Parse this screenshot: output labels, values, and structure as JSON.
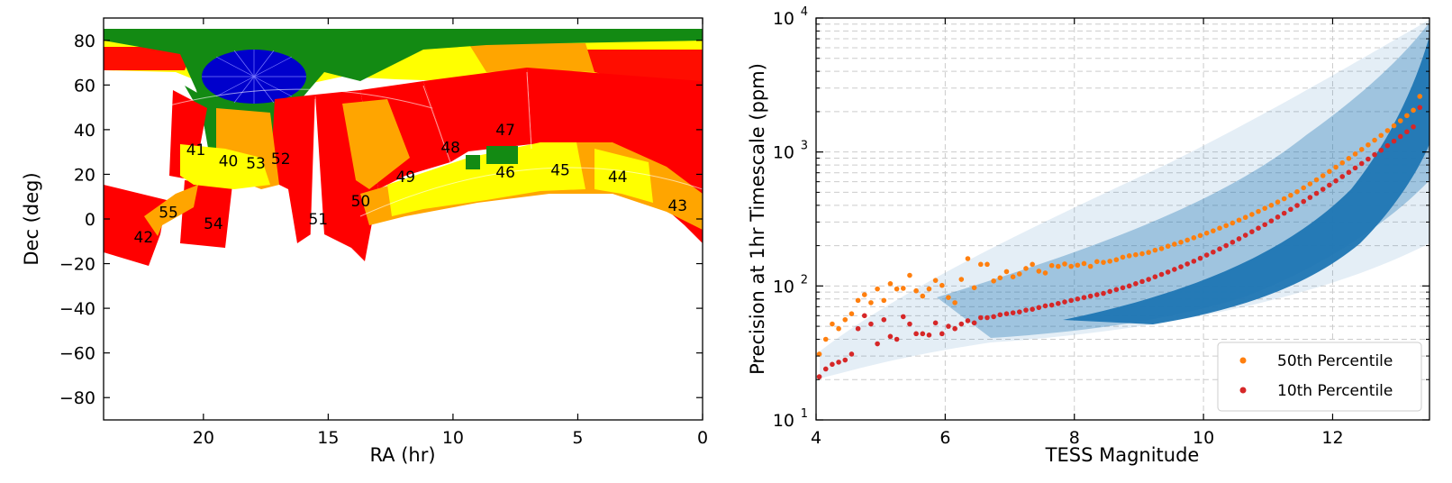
{
  "chart_data": [
    {
      "type": "scatter",
      "xlabel": "RA (hr)",
      "ylabel": "Dec (deg)",
      "xlim": [
        24,
        0
      ],
      "ylim": [
        -90,
        90
      ],
      "x_ticks": [
        "20",
        "15",
        "10",
        "5",
        "0"
      ],
      "x_tick_values": [
        20,
        15,
        10,
        5,
        0
      ],
      "y_ticks": [
        "80",
        "60",
        "40",
        "20",
        "0",
        "−20",
        "−40",
        "−60",
        "−80"
      ],
      "y_tick_values": [
        80,
        60,
        40,
        20,
        0,
        -20,
        -40,
        -60,
        -80
      ],
      "grid": false,
      "coverage_colors": {
        "one_sector": "#ff0000",
        "two_sectors": "#ffa500",
        "three_plus_sectors": "#ffff00",
        "many_sectors": "#008000",
        "continuous_viewing_zone": "#0000ff"
      },
      "sector_labels": [
        {
          "text": "42",
          "ra": 22.4,
          "dec": -8
        },
        {
          "text": "55",
          "ra": 21.4,
          "dec": 3
        },
        {
          "text": "54",
          "ra": 19.6,
          "dec": -2
        },
        {
          "text": "41",
          "ra": 20.3,
          "dec": 31
        },
        {
          "text": "40",
          "ra": 19.0,
          "dec": 26
        },
        {
          "text": "53",
          "ra": 17.9,
          "dec": 25
        },
        {
          "text": "52",
          "ra": 16.9,
          "dec": 27
        },
        {
          "text": "51",
          "ra": 15.4,
          "dec": 0
        },
        {
          "text": "50",
          "ra": 13.7,
          "dec": 8
        },
        {
          "text": "49",
          "ra": 11.9,
          "dec": 19
        },
        {
          "text": "48",
          "ra": 10.1,
          "dec": 32
        },
        {
          "text": "47",
          "ra": 7.9,
          "dec": 40
        },
        {
          "text": "46",
          "ra": 7.9,
          "dec": 21
        },
        {
          "text": "45",
          "ra": 5.7,
          "dec": 22
        },
        {
          "text": "44",
          "ra": 3.4,
          "dec": 19
        },
        {
          "text": "43",
          "ra": 1.0,
          "dec": 6
        }
      ]
    },
    {
      "type": "scatter",
      "xlabel": "TESS Magnitude",
      "ylabel": "Precision at 1hr Timescale (ppm)",
      "xlim": [
        4,
        13.5
      ],
      "ylim": [
        10,
        10000
      ],
      "yscale": "log",
      "grid": true,
      "legend_position": "lower-right",
      "x_ticks": [
        "4",
        "6",
        "8",
        "10",
        "12"
      ],
      "x_tick_values": [
        4,
        6,
        8,
        10,
        12
      ],
      "y_ticks": [
        {
          "base": "10",
          "exp": "1",
          "value": 10
        },
        {
          "base": "10",
          "exp": "2",
          "value": 100
        },
        {
          "base": "10",
          "exp": "3",
          "value": 1000
        },
        {
          "base": "10",
          "exp": "4",
          "value": 10000
        }
      ],
      "cloud_color": "#1f77b4",
      "series": [
        {
          "name": "50th Percentile",
          "color": "#ff7f0e",
          "x": [
            4.05,
            4.15,
            4.25,
            4.35,
            4.45,
            4.55,
            4.65,
            4.75,
            4.85,
            4.95,
            5.05,
            5.15,
            5.25,
            5.35,
            5.45,
            5.55,
            5.65,
            5.75,
            5.85,
            5.95,
            6.05,
            6.15,
            6.25,
            6.35,
            6.45,
            6.55,
            6.65,
            6.75,
            6.85,
            6.95,
            7.05,
            7.15,
            7.25,
            7.35,
            7.45,
            7.55,
            7.65,
            7.75,
            7.85,
            7.95,
            8.05,
            8.15,
            8.25,
            8.35,
            8.45,
            8.55,
            8.65,
            8.75,
            8.85,
            8.95,
            9.05,
            9.15,
            9.25,
            9.35,
            9.45,
            9.55,
            9.65,
            9.75,
            9.85,
            9.95,
            10.05,
            10.15,
            10.25,
            10.35,
            10.45,
            10.55,
            10.65,
            10.75,
            10.85,
            10.95,
            11.05,
            11.15,
            11.25,
            11.35,
            11.45,
            11.55,
            11.65,
            11.75,
            11.85,
            11.95,
            12.05,
            12.15,
            12.25,
            12.35,
            12.45,
            12.55,
            12.65,
            12.75,
            12.85,
            12.95,
            13.05,
            13.15,
            13.25,
            13.35
          ],
          "y": [
            31,
            40,
            52,
            48,
            56,
            62,
            78,
            86,
            75,
            95,
            78,
            104,
            95,
            96,
            120,
            92,
            84,
            95,
            110,
            101,
            82,
            75,
            112,
            160,
            97,
            145,
            145,
            109,
            115,
            128,
            117,
            123,
            135,
            145,
            129,
            125,
            142,
            140,
            146,
            140,
            143,
            147,
            140,
            152,
            150,
            153,
            157,
            164,
            168,
            171,
            174,
            178,
            185,
            190,
            198,
            205,
            212,
            220,
            229,
            238,
            248,
            258,
            270,
            282,
            295,
            310,
            325,
            342,
            360,
            380,
            400,
            423,
            448,
            475,
            505,
            540,
            578,
            620,
            665,
            715,
            770,
            830,
            895,
            967,
            1045,
            1130,
            1225,
            1330,
            1445,
            1570,
            1710,
            1870,
            2050,
            2600
          ]
        },
        {
          "name": "10th Percentile",
          "color": "#d62728",
          "x": [
            4.05,
            4.15,
            4.25,
            4.35,
            4.45,
            4.55,
            4.65,
            4.75,
            4.85,
            4.95,
            5.05,
            5.15,
            5.25,
            5.35,
            5.45,
            5.55,
            5.65,
            5.75,
            5.85,
            5.95,
            6.05,
            6.15,
            6.25,
            6.35,
            6.45,
            6.55,
            6.65,
            6.75,
            6.85,
            6.95,
            7.05,
            7.15,
            7.25,
            7.35,
            7.45,
            7.55,
            7.65,
            7.75,
            7.85,
            7.95,
            8.05,
            8.15,
            8.25,
            8.35,
            8.45,
            8.55,
            8.65,
            8.75,
            8.85,
            8.95,
            9.05,
            9.15,
            9.25,
            9.35,
            9.45,
            9.55,
            9.65,
            9.75,
            9.85,
            9.95,
            10.05,
            10.15,
            10.25,
            10.35,
            10.45,
            10.55,
            10.65,
            10.75,
            10.85,
            10.95,
            11.05,
            11.15,
            11.25,
            11.35,
            11.45,
            11.55,
            11.65,
            11.75,
            11.85,
            11.95,
            12.05,
            12.15,
            12.25,
            12.35,
            12.45,
            12.55,
            12.65,
            12.75,
            12.85,
            12.95,
            13.05,
            13.15,
            13.25,
            13.35
          ],
          "y": [
            21,
            24,
            26,
            27,
            28,
            31,
            48,
            60,
            52,
            37,
            56,
            42,
            40,
            59,
            52,
            44,
            44,
            43,
            53,
            44,
            50,
            48,
            52,
            55,
            53,
            58,
            58,
            59,
            61,
            62,
            63,
            64,
            66,
            67,
            69,
            71,
            72,
            74,
            76,
            78,
            80,
            82,
            84,
            86,
            88,
            91,
            94,
            97,
            100,
            104,
            108,
            112,
            117,
            122,
            127,
            133,
            139,
            146,
            153,
            161,
            170,
            179,
            189,
            200,
            212,
            225,
            239,
            254,
            270,
            287,
            306,
            327,
            349,
            373,
            399,
            427,
            458,
            491,
            527,
            566,
            609,
            655,
            705,
            760,
            820,
            885,
            955,
            1030,
            1115,
            1205,
            1305,
            1415,
            1540,
            2150
          ]
        }
      ]
    }
  ]
}
